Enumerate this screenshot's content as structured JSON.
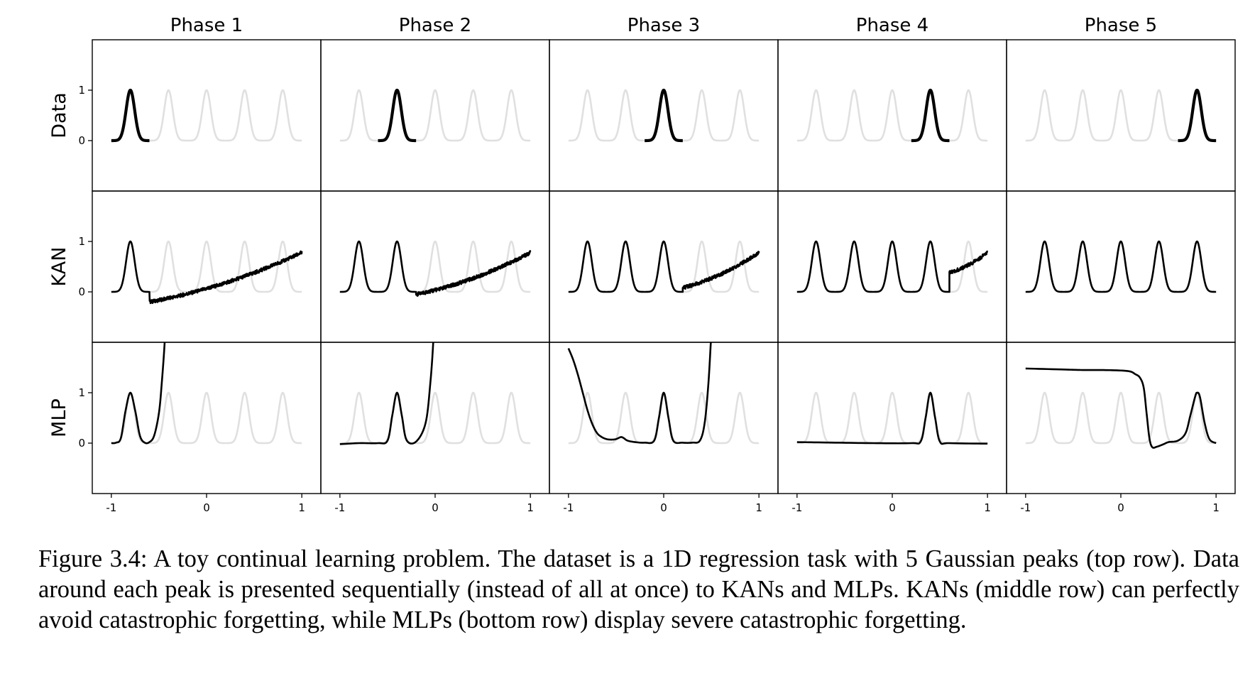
{
  "figure": {
    "columns": [
      "Phase 1",
      "Phase 2",
      "Phase 3",
      "Phase 4",
      "Phase 5"
    ],
    "rows": [
      "Data",
      "KAN",
      "MLP"
    ],
    "x_ticks": [
      "-1",
      "0",
      "1"
    ],
    "y_ticks": [
      "0",
      "1"
    ]
  },
  "chart_data": {
    "type": "line",
    "layout": "grid 3 rows x 5 columns",
    "xlim": [
      -1.2,
      1.2
    ],
    "ylim": [
      -1.0,
      2.0
    ],
    "peak_centers": [
      -0.8,
      -0.4,
      0.0,
      0.4,
      0.8
    ],
    "background_color": "#e0e0e0",
    "line_color": "#000000",
    "rows": {
      "Data": {
        "description_per_phase": "highlighted Gaussian peak at peak_centers[phase]",
        "series": [
          {
            "phase": 1,
            "x_range": [
              -1.0,
              -0.6
            ],
            "peak_at": -0.8
          },
          {
            "phase": 2,
            "x_range": [
              -0.6,
              -0.2
            ],
            "peak_at": -0.4
          },
          {
            "phase": 3,
            "x_range": [
              -0.2,
              0.2
            ],
            "peak_at": 0.0
          },
          {
            "phase": 4,
            "x_range": [
              0.2,
              0.6
            ],
            "peak_at": 0.4
          },
          {
            "phase": 5,
            "x_range": [
              0.6,
              1.0
            ],
            "peak_at": 0.8
          }
        ]
      },
      "KAN": {
        "series": [
          {
            "phase": 1,
            "peaks_learned": [
              -0.8
            ],
            "tail_start_x": -0.6,
            "tail_start_y": -0.2,
            "tail_end_y": 0.78
          },
          {
            "phase": 2,
            "peaks_learned": [
              -0.8,
              -0.4
            ],
            "tail_start_x": -0.2,
            "tail_start_y": -0.05,
            "tail_end_y": 0.78
          },
          {
            "phase": 3,
            "peaks_learned": [
              -0.8,
              -0.4,
              0.0
            ],
            "tail_start_x": 0.2,
            "tail_start_y": 0.08,
            "tail_end_y": 0.78
          },
          {
            "phase": 4,
            "peaks_learned": [
              -0.8,
              -0.4,
              0.0,
              0.4
            ],
            "tail_start_x": 0.6,
            "tail_start_y": 0.38,
            "tail_end_y": 0.78
          },
          {
            "phase": 5,
            "peaks_learned": [
              -0.8,
              -0.4,
              0.0,
              0.4,
              0.8
            ],
            "tail_start_x": null,
            "tail_start_y": null,
            "tail_end_y": null
          }
        ]
      },
      "MLP": {
        "series": [
          {
            "phase": 1,
            "points": [
              [
                -1.0,
                0.0
              ],
              [
                -0.95,
                0.01
              ],
              [
                -0.9,
                0.1
              ],
              [
                -0.85,
                0.65
              ],
              [
                -0.8,
                1.0
              ],
              [
                -0.75,
                0.65
              ],
              [
                -0.7,
                0.15
              ],
              [
                -0.65,
                0.01
              ],
              [
                -0.6,
                0.02
              ],
              [
                -0.55,
                0.15
              ],
              [
                -0.5,
                0.6
              ],
              [
                -0.47,
                1.2
              ],
              [
                -0.44,
                2.0
              ],
              [
                -0.43,
                2.6
              ]
            ]
          },
          {
            "phase": 2,
            "points": [
              [
                -1.0,
                -0.02
              ],
              [
                -0.8,
                0.0
              ],
              [
                -0.6,
                0.0
              ],
              [
                -0.5,
                0.05
              ],
              [
                -0.45,
                0.55
              ],
              [
                -0.4,
                1.0
              ],
              [
                -0.35,
                0.55
              ],
              [
                -0.3,
                0.06
              ],
              [
                -0.2,
                0.03
              ],
              [
                -0.1,
                0.4
              ],
              [
                -0.05,
                1.2
              ],
              [
                -0.02,
                2.0
              ],
              [
                -0.01,
                2.6
              ]
            ]
          },
          {
            "phase": 3,
            "points": [
              [
                -1.0,
                1.88
              ],
              [
                -0.95,
                1.65
              ],
              [
                -0.9,
                1.35
              ],
              [
                -0.85,
                1.0
              ],
              [
                -0.8,
                0.65
              ],
              [
                -0.75,
                0.38
              ],
              [
                -0.7,
                0.2
              ],
              [
                -0.65,
                0.12
              ],
              [
                -0.6,
                0.08
              ],
              [
                -0.55,
                0.07
              ],
              [
                -0.5,
                0.08
              ],
              [
                -0.45,
                0.12
              ],
              [
                -0.42,
                0.1
              ],
              [
                -0.38,
                0.05
              ],
              [
                -0.3,
                0.02
              ],
              [
                -0.2,
                0.01
              ],
              [
                -0.1,
                0.05
              ],
              [
                -0.05,
                0.5
              ],
              [
                0.0,
                1.0
              ],
              [
                0.05,
                0.5
              ],
              [
                0.1,
                0.05
              ],
              [
                0.2,
                0.01
              ],
              [
                0.3,
                0.01
              ],
              [
                0.38,
                0.05
              ],
              [
                0.43,
                0.4
              ],
              [
                0.47,
                1.2
              ],
              [
                0.5,
                2.2
              ],
              [
                0.51,
                2.6
              ]
            ]
          },
          {
            "phase": 4,
            "points": [
              [
                -1.0,
                0.02
              ],
              [
                -0.6,
                0.01
              ],
              [
                -0.2,
                0.0
              ],
              [
                0.2,
                0.0
              ],
              [
                0.3,
                0.04
              ],
              [
                0.35,
                0.5
              ],
              [
                0.4,
                1.0
              ],
              [
                0.45,
                0.5
              ],
              [
                0.5,
                0.03
              ],
              [
                0.6,
                0.0
              ],
              [
                1.0,
                -0.01
              ]
            ]
          },
          {
            "phase": 5,
            "points": [
              [
                -1.0,
                1.48
              ],
              [
                -0.6,
                1.46
              ],
              [
                -0.4,
                1.45
              ],
              [
                -0.2,
                1.45
              ],
              [
                0.0,
                1.44
              ],
              [
                0.1,
                1.42
              ],
              [
                0.15,
                1.37
              ],
              [
                0.2,
                1.3
              ],
              [
                0.24,
                1.1
              ],
              [
                0.27,
                0.6
              ],
              [
                0.3,
                0.1
              ],
              [
                0.33,
                -0.08
              ],
              [
                0.38,
                -0.07
              ],
              [
                0.45,
                -0.02
              ],
              [
                0.5,
                0.02
              ],
              [
                0.6,
                0.05
              ],
              [
                0.68,
                0.2
              ],
              [
                0.73,
                0.55
              ],
              [
                0.78,
                0.92
              ],
              [
                0.8,
                1.0
              ],
              [
                0.83,
                0.92
              ],
              [
                0.88,
                0.4
              ],
              [
                0.93,
                0.08
              ],
              [
                1.0,
                0.0
              ]
            ]
          }
        ]
      }
    }
  },
  "caption": "Figure 3.4: A toy continual learning problem. The dataset is a 1D regression task with 5 Gaussian peaks (top row). Data around each peak is presented sequentially (instead of all at once) to KANs and MLPs. KANs (middle row) can perfectly avoid catastrophic forgetting, while MLPs (bottom row) display severe catastrophic forgetting."
}
